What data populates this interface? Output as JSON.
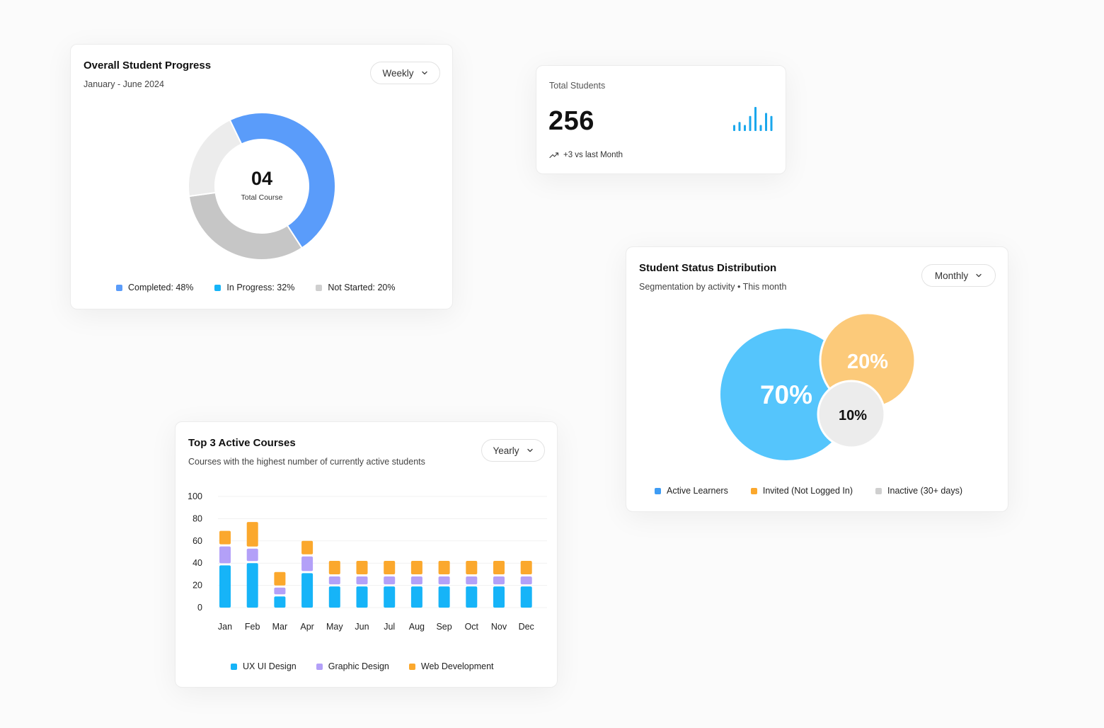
{
  "progress_card": {
    "title": "Overall Student Progress",
    "subtitle": "January - June 2024",
    "dropdown": "Weekly",
    "center_value": "04",
    "center_label": "Total Course",
    "legend": [
      "Completed: 48%",
      "In Progress: 32%",
      "Not Started: 20%"
    ]
  },
  "total_students_card": {
    "label": "Total Students",
    "value": "256",
    "trend": "+3 vs last Month",
    "sparkline_color": "#1aa7ec",
    "sparkline_values": [
      2,
      3,
      2,
      5,
      8,
      2,
      6,
      5
    ]
  },
  "status_card": {
    "title": "Student Status Distribution",
    "subtitle": "Segmentation by activity • This month",
    "dropdown": "Monthly",
    "bubbles": [
      "70%",
      "20%",
      "10%"
    ],
    "legend": [
      "Active Learners",
      "Invited (Not Logged In)",
      "Inactive (30+ days)"
    ]
  },
  "courses_card": {
    "title": "Top 3 Active Courses",
    "subtitle": "Courses with the highest number of currently active students",
    "dropdown": "Yearly",
    "legend": [
      "UX UI Design",
      "Graphic Design",
      "Web Development"
    ]
  },
  "colors": {
    "completed": "#5a9cfa",
    "in_progress": "#c6c6c6",
    "not_started": "#ececec",
    "active": "#55c5fc",
    "invited": "#fcca7a",
    "inactive": "#ececec",
    "ux": "#16b4f8",
    "graphic": "#b3a0f8",
    "web": "#fba82d"
  },
  "chart_data": [
    {
      "type": "pie",
      "title": "Overall Student Progress",
      "categories": [
        "Completed",
        "In Progress",
        "Not Started"
      ],
      "values": [
        48,
        32,
        20
      ]
    },
    {
      "type": "bar",
      "title": "Top 3 Active Courses",
      "categories": [
        "Jan",
        "Feb",
        "Mar",
        "Apr",
        "May",
        "Jun",
        "Jul",
        "Aug",
        "Sep",
        "Oct",
        "Nov",
        "Dec"
      ],
      "yticks": [
        "100",
        "80",
        "60",
        "40",
        "20",
        "0"
      ],
      "ylim": [
        0,
        100
      ],
      "stacked": true,
      "series": [
        {
          "name": "UX UI Design",
          "values": [
            38,
            40,
            10,
            31,
            19,
            19,
            19,
            19,
            19,
            19,
            19,
            19
          ]
        },
        {
          "name": "Graphic Design",
          "values": [
            17,
            13,
            8,
            15,
            9,
            9,
            9,
            9,
            9,
            9,
            9,
            9
          ]
        },
        {
          "name": "Web Development",
          "values": [
            14,
            24,
            14,
            14,
            14,
            14,
            14,
            14,
            14,
            14,
            14,
            14
          ]
        }
      ]
    },
    {
      "type": "pie",
      "title": "Student Status Distribution",
      "categories": [
        "Active Learners",
        "Invited (Not Logged In)",
        "Inactive (30+ days)"
      ],
      "values": [
        70,
        20,
        10
      ]
    }
  ]
}
